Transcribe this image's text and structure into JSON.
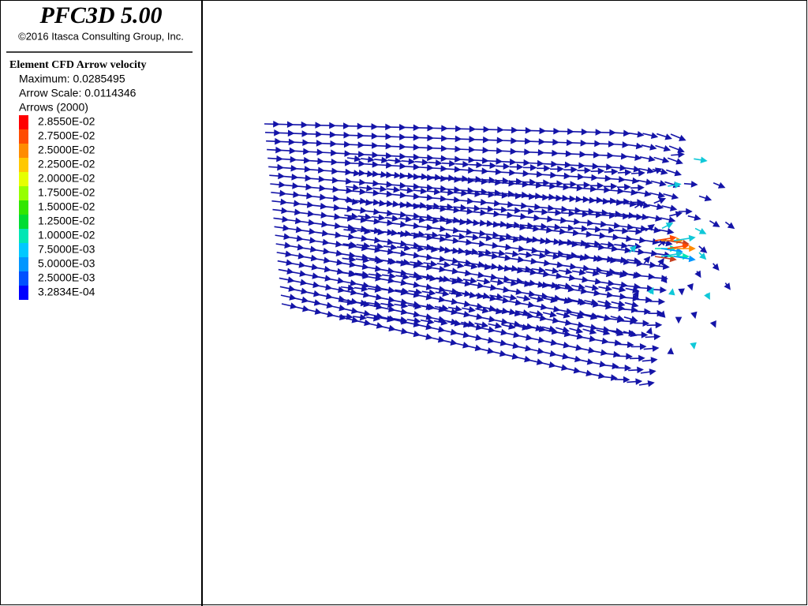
{
  "header": {
    "title": "PFC3D 5.00",
    "copyright": "©2016 Itasca Consulting Group, Inc."
  },
  "legend": {
    "title": "Element CFD Arrow velocity",
    "maximum": "Maximum: 0.0285495",
    "arrow_scale": "Arrow Scale: 0.0114346",
    "arrows": "Arrows (2000)",
    "entries": [
      {
        "label": "2.8550E-02",
        "color": "#ff0000"
      },
      {
        "label": "2.7500E-02",
        "color": "#ff4c00"
      },
      {
        "label": "2.5000E-02",
        "color": "#ff8c00"
      },
      {
        "label": "2.2500E-02",
        "color": "#ffc800"
      },
      {
        "label": "2.0000E-02",
        "color": "#e6ff00"
      },
      {
        "label": "1.7500E-02",
        "color": "#96ff00"
      },
      {
        "label": "1.5000E-02",
        "color": "#32e600"
      },
      {
        "label": "1.2500E-02",
        "color": "#00dc32"
      },
      {
        "label": "1.0000E-02",
        "color": "#00e6b4"
      },
      {
        "label": "7.5000E-03",
        "color": "#00c8ff"
      },
      {
        "label": "5.0000E-03",
        "color": "#0096ff"
      },
      {
        "label": "2.5000E-03",
        "color": "#0050ff"
      },
      {
        "label": "3.2834E-04",
        "color": "#0000ff"
      }
    ]
  }
}
